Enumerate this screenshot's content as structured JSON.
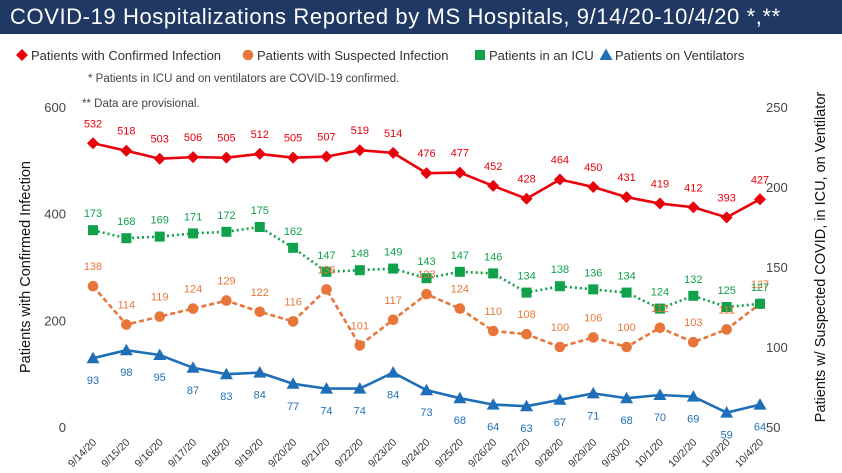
{
  "title": "COVID-19 Hospitalizations Reported by MS Hospitals, 9/14/20-10/4/20 *,**",
  "notes": [
    "* Patients in ICU and on ventilators are COVID-19 confirmed.",
    "** Data are provisional."
  ],
  "colors": {
    "title_bg": "#1f3864",
    "confirmed": "#e8000b",
    "suspected": "#e8763a",
    "icu": "#10a14a",
    "ventilators": "#1f6fb8"
  },
  "chart_data": {
    "type": "line",
    "categories": [
      "9/14/20",
      "9/15/20",
      "9/16/20",
      "9/17/20",
      "9/18/20",
      "9/19/20",
      "9/20/20",
      "9/21/20",
      "9/22/20",
      "9/23/20",
      "9/24/20",
      "9/25/20",
      "9/26/20",
      "9/27/20",
      "9/28/20",
      "9/29/20",
      "9/30/20",
      "10/1/20",
      "10/2/20",
      "10/3/20",
      "10/4/20"
    ],
    "ylabel_left": "Patients with Confirmed Infection",
    "ylabel_right": "Patients w/ Suspected COVID, in ICU, on Ventilator",
    "ylim_left": [
      0,
      600
    ],
    "yticks_left": [
      "0",
      "200",
      "400",
      "600"
    ],
    "ylim_right": [
      50,
      250
    ],
    "yticks_right": [
      "50",
      "100",
      "150",
      "200",
      "250"
    ],
    "grid": false,
    "legend_position": "top",
    "series": [
      {
        "name": "Patients with Confirmed Infection",
        "axis": "left",
        "marker": "diamond",
        "line": "solid",
        "values": [
          532,
          518,
          503,
          506,
          505,
          512,
          505,
          507,
          519,
          514,
          476,
          477,
          452,
          428,
          464,
          450,
          431,
          419,
          412,
          393,
          427
        ]
      },
      {
        "name": "Patients with Suspected Infection",
        "axis": "right",
        "marker": "circle",
        "line": "dashed",
        "values": [
          138,
          114,
          119,
          124,
          129,
          122,
          116,
          136,
          101,
          117,
          133,
          124,
          110,
          108,
          100,
          106,
          100,
          112,
          103,
          111,
          127
        ]
      },
      {
        "name": "Patients in an ICU",
        "axis": "right",
        "marker": "square",
        "line": "dotted",
        "values": [
          173,
          168,
          169,
          171,
          172,
          175,
          162,
          147,
          148,
          149,
          143,
          147,
          146,
          134,
          138,
          136,
          134,
          124,
          132,
          125,
          127
        ]
      },
      {
        "name": "Patients on Ventilators",
        "axis": "right",
        "marker": "triangle",
        "line": "solid",
        "values": [
          93,
          98,
          95,
          87,
          83,
          84,
          77,
          74,
          74,
          84,
          73,
          68,
          64,
          63,
          67,
          71,
          68,
          70,
          69,
          59,
          64
        ]
      }
    ]
  }
}
